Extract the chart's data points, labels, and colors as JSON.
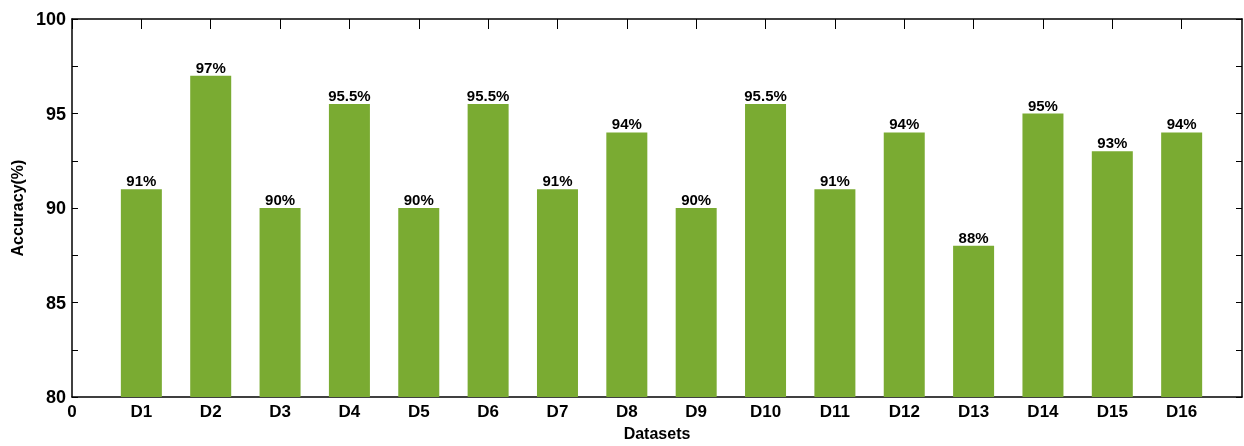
{
  "chart_data": {
    "type": "bar",
    "xlabel": "Datasets",
    "ylabel": "Accuracy(%)",
    "categories": [
      "0",
      "D1",
      "D2",
      "D3",
      "D4",
      "D5",
      "D6",
      "D7",
      "D8",
      "D9",
      "D10",
      "D11",
      "D12",
      "D13",
      "D14",
      "D15",
      "D16"
    ],
    "values": [
      null,
      91,
      97,
      90,
      95.5,
      90,
      95.5,
      91,
      94,
      90,
      95.5,
      91,
      94,
      88,
      95,
      93,
      94
    ],
    "value_labels": [
      null,
      "91%",
      "97%",
      "90%",
      "95.5%",
      "90%",
      "95.5%",
      "91%",
      "94%",
      "90%",
      "95.5%",
      "91%",
      "94%",
      "88%",
      "95%",
      "93%",
      "94%"
    ],
    "color": "#7aab32",
    "ylim": [
      80,
      100
    ],
    "yticks": [
      80,
      {
        "value": 82.5,
        "label": null
      },
      85,
      {
        "value": 87.5,
        "label": null
      },
      90,
      {
        "value": 92.5,
        "label": null
      },
      95,
      {
        "value": 97.5,
        "label": null
      },
      100
    ],
    "grid": false
  }
}
